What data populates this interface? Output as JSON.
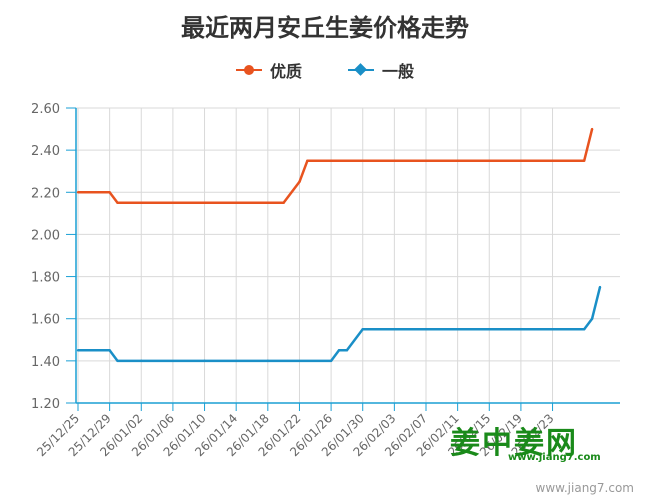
{
  "chart_data": {
    "type": "line",
    "title": "最近两月安丘生姜价格走势",
    "categories": [
      "25/12/25",
      "25/12/29",
      "26/01/02",
      "26/01/06",
      "26/01/10",
      "26/01/14",
      "26/01/18",
      "26/01/22",
      "26/01/26",
      "26/01/30",
      "26/02/03",
      "26/02/07",
      "26/02/11",
      "26/02/15",
      "26/02/19",
      "26/02/23"
    ],
    "yticks": [
      "1.20",
      "1.40",
      "1.60",
      "1.80",
      "2.00",
      "2.20",
      "2.40",
      "2.60"
    ],
    "ylim": [
      1.2,
      2.6
    ],
    "grid": true,
    "legend_position": "top",
    "series": [
      {
        "name": "优质",
        "color": "#e8531f",
        "marker": "circle",
        "points": [
          [
            "25/12/25",
            2.2
          ],
          [
            "25/12/29",
            2.2
          ],
          [
            "25/12/30",
            2.15
          ],
          [
            "26/01/02",
            2.15
          ],
          [
            "26/01/10",
            2.15
          ],
          [
            "26/01/18",
            2.15
          ],
          [
            "26/01/20",
            2.15
          ],
          [
            "26/01/22",
            2.25
          ],
          [
            "26/01/23",
            2.35
          ],
          [
            "26/01/26",
            2.35
          ],
          [
            "26/02/03",
            2.35
          ],
          [
            "26/02/11",
            2.35
          ],
          [
            "26/02/19",
            2.35
          ],
          [
            "26/02/27",
            2.35
          ],
          [
            "26/02/28",
            2.5
          ]
        ]
      },
      {
        "name": "一般",
        "color": "#1a8fc7",
        "marker": "diamond",
        "points": [
          [
            "25/12/25",
            1.45
          ],
          [
            "25/12/29",
            1.45
          ],
          [
            "25/12/30",
            1.4
          ],
          [
            "26/01/02",
            1.4
          ],
          [
            "26/01/10",
            1.4
          ],
          [
            "26/01/18",
            1.4
          ],
          [
            "26/01/26",
            1.4
          ],
          [
            "26/01/27",
            1.45
          ],
          [
            "26/01/28",
            1.45
          ],
          [
            "26/01/30",
            1.55
          ],
          [
            "26/02/07",
            1.55
          ],
          [
            "26/02/15",
            1.55
          ],
          [
            "26/02/23",
            1.55
          ],
          [
            "26/02/27",
            1.55
          ],
          [
            "26/02/28",
            1.6
          ],
          [
            "26/03/01",
            1.75
          ]
        ]
      }
    ]
  },
  "watermark": {
    "brand": "姜中姜网",
    "url": "www.jiang7.com"
  },
  "source_url": "www.jiang7.com"
}
